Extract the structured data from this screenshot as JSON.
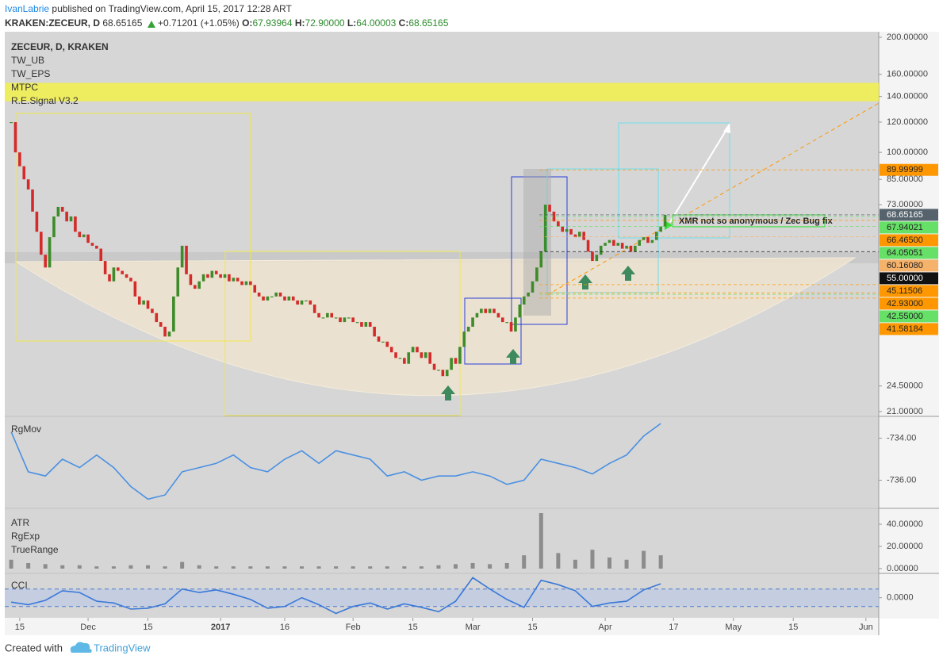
{
  "header": {
    "author": "IvanLabrie",
    "published": "published on TradingView.com, April 15, 2017 12:28 ART",
    "symbol": "KRAKEN:ZECEUR, D",
    "last": "68.65165",
    "change": "+0.71201 (+1.05%)",
    "o_label": "O:",
    "o": "67.93964",
    "h_label": "H:",
    "h": "72.90000",
    "l_label": "L:",
    "l": "64.00003",
    "c_label": "C:",
    "c": "68.65165"
  },
  "footer": {
    "text": "Created with",
    "brand": "TradingView"
  },
  "chart_data": [
    {
      "type": "candlestick",
      "title": "ZECEUR, D, KRAKEN",
      "legend": [
        "TW_UB",
        "TW_EPS",
        "MTPC",
        "R.E.Signal V3.2"
      ],
      "annotation": "XMR not so anonymous / Zec Bug fix",
      "close": [
        120,
        100,
        92,
        85,
        80,
        70,
        62,
        54,
        50,
        60,
        68,
        72,
        70,
        66,
        68,
        62,
        60,
        61,
        58,
        57,
        56,
        52,
        48,
        46,
        50,
        49,
        48,
        47,
        46,
        42,
        40,
        41,
        39,
        38,
        36,
        35,
        33,
        34,
        42,
        50,
        57,
        48,
        45,
        44,
        46,
        48,
        47,
        49,
        48,
        47,
        48,
        46,
        47,
        46,
        45,
        46,
        45,
        43,
        42,
        41,
        42,
        42,
        43,
        42,
        41,
        42,
        41,
        40,
        41,
        41,
        40,
        38,
        37,
        37,
        38,
        37,
        37,
        36,
        37,
        37,
        36,
        36,
        35,
        36,
        35,
        33,
        32,
        32,
        31,
        30,
        29,
        29,
        28,
        30,
        31,
        30,
        29,
        30,
        28,
        27,
        27,
        26,
        27,
        29,
        28,
        31,
        34,
        35,
        37,
        38,
        39,
        38,
        39,
        38,
        37,
        36,
        36,
        34,
        37,
        40,
        42,
        43,
        46,
        50,
        55,
        73,
        70,
        66,
        64,
        62,
        63,
        61,
        60,
        62,
        59,
        55,
        52,
        54,
        57,
        58,
        59,
        57,
        58,
        56,
        57,
        55,
        57,
        59,
        60,
        58,
        59,
        62,
        64,
        68.65
      ],
      "up_color": "#3d8b2a",
      "down_color": "#d42a2a",
      "log_scale": true,
      "ylim": [
        20.5,
        206.8
      ],
      "yticks": [
        {
          "value": 200,
          "label": "200.00000"
        },
        {
          "value": 160,
          "label": "160.00000"
        },
        {
          "value": 140,
          "label": "140.00000"
        },
        {
          "value": 120,
          "label": "120.00000"
        },
        {
          "value": 100,
          "label": "100.00000"
        },
        {
          "value": 85,
          "label": "85.00000"
        },
        {
          "value": 73,
          "label": "73.00000"
        },
        {
          "value": 24.5,
          "label": "24.50000"
        },
        {
          "value": 21,
          "label": "21.00000"
        }
      ],
      "band": [
        136,
        152
      ],
      "band_color": "#f2f04a",
      "price_labels": [
        {
          "value": 89.99999,
          "label": "89.99999",
          "color": "#ff9800",
          "text_color": "#222"
        },
        {
          "value": 68.65165,
          "label": "68.65165",
          "color": "#56636d",
          "text_color": "#fff"
        },
        {
          "value": 67.94021,
          "label": "67.94021",
          "color": "#66e066",
          "text_color": "#222"
        },
        {
          "value": 66.465,
          "label": "66.46500",
          "color": "#ff9800",
          "text_color": "#222"
        },
        {
          "value": 64.05051,
          "label": "64.05051",
          "color": "#66e066",
          "text_color": "#222"
        },
        {
          "value": 60.1608,
          "label": "60.16080",
          "color": "#f5b26b",
          "text_color": "#222"
        },
        {
          "value": 55,
          "label": "55.00000",
          "color": "#111111",
          "text_color": "#fff"
        },
        {
          "value": 45.11506,
          "label": "45.11506",
          "color": "#ff9800",
          "text_color": "#222"
        },
        {
          "value": 42.93,
          "label": "42.93000",
          "color": "#ff9800",
          "text_color": "#222"
        },
        {
          "value": 42.55,
          "label": "42.55000",
          "color": "#66e066",
          "text_color": "#222"
        },
        {
          "value": 41.58184,
          "label": "41.58184",
          "color": "#ff9800",
          "text_color": "#222"
        }
      ],
      "xlim": [
        -1.5,
        203
      ],
      "xticks": [
        {
          "value": 2,
          "label": "15"
        },
        {
          "value": 18,
          "label": "Dec"
        },
        {
          "value": 32,
          "label": "15"
        },
        {
          "value": 49,
          "label": "2017"
        },
        {
          "value": 64,
          "label": "16"
        },
        {
          "value": 80,
          "label": "Feb"
        },
        {
          "value": 94,
          "label": "15"
        },
        {
          "value": 108,
          "label": "Mar"
        },
        {
          "value": 122,
          "label": "15"
        },
        {
          "value": 139,
          "label": "Apr"
        },
        {
          "value": 155,
          "label": "17"
        },
        {
          "value": 169,
          "label": "May"
        },
        {
          "value": 183,
          "label": "15"
        },
        {
          "value": 200,
          "label": "Jun"
        }
      ]
    },
    {
      "type": "line",
      "name": "RgMov",
      "color": "#4a90e2",
      "x": [
        0,
        4,
        8,
        12,
        16,
        20,
        24,
        28,
        32,
        36,
        40,
        44,
        48,
        52,
        56,
        60,
        64,
        68,
        72,
        76,
        80,
        84,
        88,
        92,
        96,
        100,
        104,
        108,
        112,
        116,
        120,
        124,
        128,
        132,
        136,
        140,
        144,
        148,
        152
      ],
      "values": [
        -733.7,
        -735.6,
        -735.8,
        -735.0,
        -735.4,
        -734.8,
        -735.4,
        -736.3,
        -736.9,
        -736.7,
        -735.6,
        -735.4,
        -735.2,
        -734.8,
        -735.4,
        -735.6,
        -735.0,
        -734.6,
        -735.2,
        -734.6,
        -734.8,
        -735.0,
        -735.8,
        -735.6,
        -736.0,
        -735.8,
        -735.8,
        -735.6,
        -735.8,
        -736.2,
        -736.0,
        -735.0,
        -735.2,
        -735.4,
        -735.7,
        -735.2,
        -734.8,
        -733.9,
        -733.3
      ],
      "ylim": [
        -737.3,
        -733
      ],
      "yticks": [
        {
          "value": -734,
          "label": "-734.00"
        },
        {
          "value": -736,
          "label": "-736.00"
        }
      ]
    },
    {
      "type": "bar",
      "legend": [
        "ATR",
        "RgExp",
        "TrueRange"
      ],
      "color": "#8c8c8c",
      "x": [
        0,
        4,
        8,
        12,
        16,
        20,
        24,
        28,
        32,
        36,
        40,
        44,
        48,
        52,
        56,
        60,
        64,
        68,
        72,
        76,
        80,
        84,
        88,
        92,
        96,
        100,
        104,
        108,
        112,
        116,
        120,
        124,
        128,
        132,
        136,
        140,
        144,
        148,
        152
      ],
      "values": [
        8,
        5,
        4,
        3,
        3,
        2,
        2,
        3,
        3,
        2,
        6,
        3,
        2,
        2,
        2,
        2,
        2,
        2,
        2,
        2,
        2,
        2,
        2,
        2,
        2,
        3,
        4,
        5,
        4,
        5,
        12,
        50,
        14,
        8,
        17,
        10,
        8,
        16,
        12
      ],
      "ylim": [
        -3.6,
        53.6
      ],
      "yticks": [
        {
          "value": 40,
          "label": "40.00000"
        },
        {
          "value": 20,
          "label": "20.00000"
        },
        {
          "value": 0,
          "label": "0.00000"
        }
      ]
    },
    {
      "type": "line",
      "name": "CCI",
      "color": "#3a78d8",
      "x": [
        0,
        4,
        8,
        12,
        16,
        20,
        24,
        28,
        32,
        36,
        40,
        44,
        48,
        52,
        56,
        60,
        64,
        68,
        72,
        76,
        80,
        84,
        88,
        92,
        96,
        100,
        104,
        108,
        112,
        116,
        120,
        124,
        128,
        132,
        136,
        140,
        144,
        148,
        152
      ],
      "values": [
        -50,
        -80,
        -30,
        80,
        60,
        -40,
        -60,
        -130,
        -120,
        -70,
        100,
        60,
        90,
        40,
        -20,
        -120,
        -100,
        0,
        -80,
        -180,
        -100,
        -60,
        -130,
        -70,
        -110,
        -160,
        -40,
        230,
        100,
        -20,
        -110,
        200,
        150,
        80,
        -100,
        -60,
        -40,
        90,
        160
      ],
      "bands": [
        -100,
        100
      ],
      "band_color": "#b7c8e6",
      "ylim": [
        -230,
        270
      ],
      "yticks": [
        {
          "value": 0,
          "label": "0.0000"
        }
      ]
    }
  ]
}
